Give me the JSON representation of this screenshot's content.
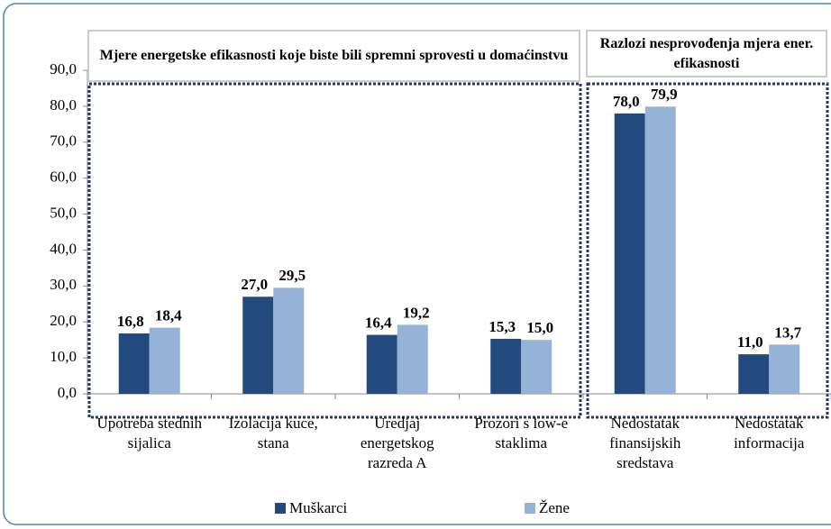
{
  "chart_data": {
    "type": "bar",
    "annotations": [
      "Mjere energetske efikasnosti koje biste bili spremni sprovesti u domaćinstvu",
      "Razlozi nesprovođenja mjera ener. efikasnosti"
    ],
    "categories": [
      "Upotreba stednih sijalica",
      "Izolacija kuce, stana",
      "Uredjaj energetskog razreda A",
      "Prozori s low-e staklima",
      "Nedostatak finansijskih sredstava",
      "Nedostatak informacija"
    ],
    "series": [
      {
        "name": "Muškarci",
        "color": "#234a7e",
        "values": [
          16.8,
          27.0,
          16.4,
          15.3,
          78.0,
          11.0
        ],
        "value_labels": [
          "16,8",
          "27,0",
          "16,4",
          "15,3",
          "78,0",
          "11,0"
        ]
      },
      {
        "name": "Žene",
        "color": "#95b3d7",
        "values": [
          18.4,
          29.5,
          19.2,
          15.0,
          79.9,
          13.7
        ],
        "value_labels": [
          "18,4",
          "29,5",
          "19,2",
          "15,0",
          "79,9",
          "13,7"
        ]
      }
    ],
    "ylim": [
      0,
      90
    ],
    "yticks": [
      {
        "value": 0,
        "label": "0,0"
      },
      {
        "value": 10,
        "label": "10,0"
      },
      {
        "value": 20,
        "label": "20,0"
      },
      {
        "value": 30,
        "label": "30,0"
      },
      {
        "value": 40,
        "label": "40,0"
      },
      {
        "value": 50,
        "label": "50,0"
      },
      {
        "value": 60,
        "label": "60,0"
      },
      {
        "value": 70,
        "label": "70,0"
      },
      {
        "value": 80,
        "label": "80,0"
      },
      {
        "value": 90,
        "label": "90,0"
      }
    ],
    "legend": "bottom"
  }
}
